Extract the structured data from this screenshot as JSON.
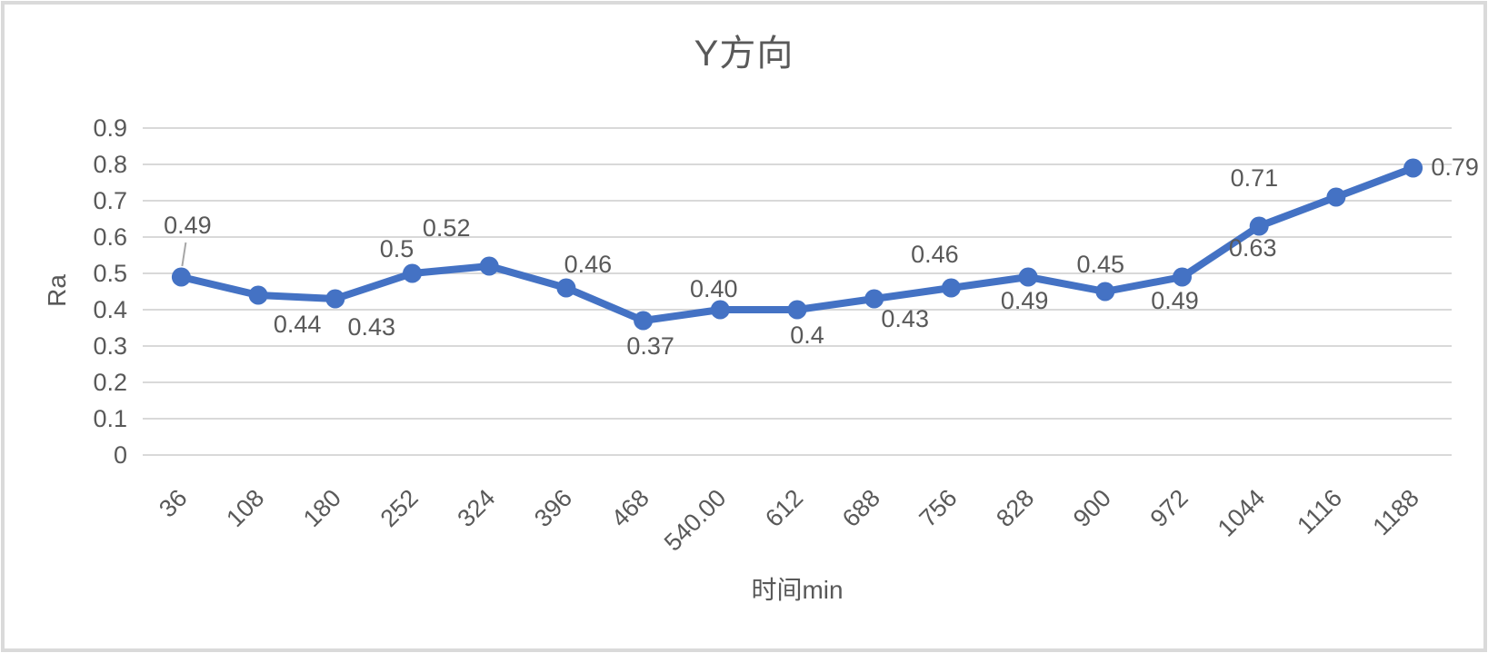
{
  "chart_data": {
    "type": "line",
    "title": "Y方向",
    "xlabel": "时间min",
    "ylabel": "Ra",
    "categories": [
      "36",
      "108",
      "180",
      "252",
      "324",
      "396",
      "468",
      "540.00",
      "612",
      "688",
      "756",
      "828",
      "900",
      "972",
      "1044",
      "1116",
      "1188"
    ],
    "series": [
      {
        "name": "Ra",
        "values": [
          0.49,
          0.44,
          0.43,
          0.5,
          0.52,
          0.46,
          0.37,
          0.4,
          0.4,
          0.43,
          0.46,
          0.49,
          0.45,
          0.49,
          0.63,
          0.71,
          0.79
        ],
        "point_labels": [
          "0.49",
          "0.44",
          "0.43",
          "0.5",
          "0.52",
          "0.46",
          "0.37",
          "0.40",
          "0.4",
          "0.43",
          "0.46",
          "0.49",
          "0.45",
          "0.49",
          "0.63",
          "0.71",
          "0.79"
        ]
      }
    ],
    "ylim": [
      0,
      0.9
    ],
    "ytick_labels": [
      "0",
      "0.1",
      "0.2",
      "0.3",
      "0.4",
      "0.5",
      "0.6",
      "0.7",
      "0.8",
      "0.9"
    ],
    "grid": true,
    "legend": "none",
    "marker": "circle",
    "colors": {
      "series": "#4472C4",
      "text": "#595959",
      "gridline": "#D9D9D9",
      "leader_line": "#A6A6A6",
      "border": "#DADADA",
      "background": "#FFFFFF"
    }
  }
}
